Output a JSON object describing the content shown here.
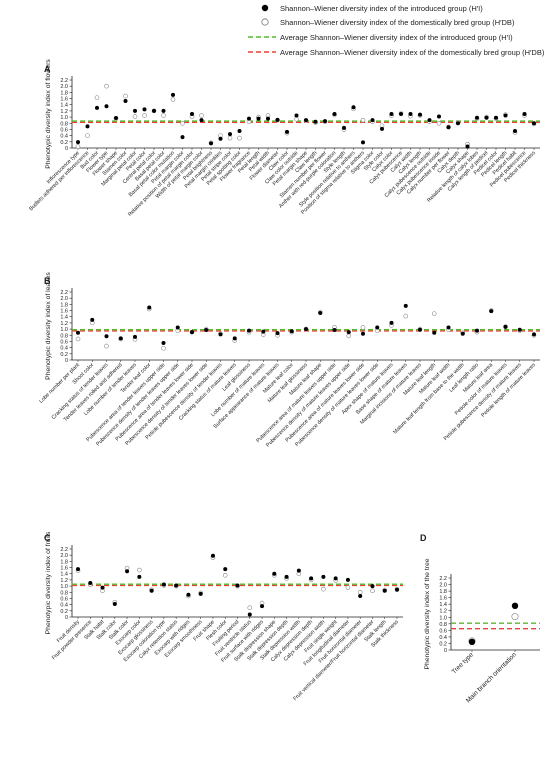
{
  "legend": [
    {
      "key": "introduced",
      "label": "Shannon–Wiener diversity index of the introduced group (H′I)",
      "marker": "filled"
    },
    {
      "key": "domestic",
      "label": "Shannon–Wiener diversity index of the domestically bred group (H′DB)",
      "marker": "open"
    },
    {
      "key": "avg_introduced",
      "label": "Average Shannon–Wiener diversity index of the introduced group (H′I)",
      "color": "#55b82e"
    },
    {
      "key": "avg_domestic",
      "label": "Average Shannon–Wiener diversity index of the domestically bred group (H′DB)",
      "color": "#e8413a"
    }
  ],
  "colors": {
    "introduced": "#000000",
    "domestic": "#888888",
    "avg_introduced": "#55b82e",
    "avg_domestic": "#e8413a"
  },
  "chart_data": [
    {
      "panel": "A",
      "type": "scatter",
      "ylabel": "Phenotypic diversity index of flowers",
      "ylim": [
        0,
        2.2
      ],
      "yticks": [
        "0",
        "0.2",
        "0.4",
        "0.6",
        "0.8",
        "1.0",
        "1.2",
        "1.4",
        "1.6",
        "1.8",
        "2.0",
        "2.2"
      ],
      "avg_introduced": 0.87,
      "avg_domestic": 0.83,
      "categories": [
        "Inflorescence type",
        "Budlets adhered per inflorescence",
        "Bud color",
        "Flower type",
        "Flower shape",
        "Stamen color",
        "Marginal petal color",
        "Petal color",
        "Central petal color",
        "Basal petal color",
        "Basal petal color mutation",
        "Petal margin color",
        "Relative position of petal margin color",
        "Width of petal margin color",
        "Petal brightness",
        "Petal margin crinkles",
        "Petal stripe color",
        "Petal spotting color",
        "Flower fragrance",
        "Petal length",
        "Petal width",
        "Flower diameter",
        "Claw color",
        "Claw color outside",
        "Petal margin shape",
        "Claw length",
        "Stamen number per flower",
        "Anther with red-purple coloration",
        "Style length",
        "Style position relative to anthers",
        "Position of stigma relative to anthers",
        "Stigma color",
        "Style color",
        "Calyx color",
        "Calyx pubescence",
        "Calyx width",
        "Calyx length",
        "Calyx pubescence outside",
        "Calyx pubescence inside",
        "Calyx number per flower",
        "Calyx depth",
        "Calyx shape",
        "Relative length of calyx lobes",
        "Calyx length of pedicel",
        "Pedicel color",
        "Pedicel length",
        "Pedicel habit",
        "Pedicel pubescence",
        "Pedicel thickness"
      ],
      "introduced": [
        0.19,
        0.7,
        1.3,
        1.35,
        0.97,
        1.52,
        1.2,
        1.25,
        1.2,
        1.2,
        1.72,
        0.35,
        1.1,
        0.9,
        0.15,
        0.3,
        0.45,
        0.55,
        0.95,
        0.95,
        0.95,
        0.91,
        0.52,
        1.05,
        0.9,
        0.85,
        0.87,
        1.1,
        0.65,
        1.32,
        0.18,
        0.9,
        0.62,
        1.1,
        1.1,
        1.1,
        1.08,
        0.9,
        1.02,
        0.67,
        0.8,
        0.05,
        0.98,
        0.98,
        0.98,
        1.05,
        0.55,
        1.1,
        0.8
      ],
      "domestic": [
        0.05,
        0.4,
        1.63,
        2.0,
        0.95,
        1.68,
        1.02,
        1.05,
        1.2,
        1.05,
        1.57,
        0.8,
        1.02,
        1.05,
        0.17,
        0.4,
        0.32,
        0.32,
        0.85,
        1.0,
        1.05,
        0.9,
        0.48,
        0.93,
        0.88,
        0.82,
        0.85,
        1.07,
        0.6,
        1.27,
        0.9,
        0.85,
        0.72,
        1.05,
        1.12,
        1.03,
        1.05,
        0.85,
        0.8,
        0.68,
        0.82,
        0.12,
        0.95,
        1.0,
        0.95,
        1.08,
        0.5,
        1.05,
        0.78
      ]
    },
    {
      "panel": "B",
      "type": "scatter",
      "ylabel": "Phenotypic diversity index of leaves",
      "ylim": [
        0,
        2.2
      ],
      "yticks": [
        "0",
        "0.2",
        "0.4",
        "0.6",
        "0.8",
        "1.0",
        "1.2",
        "1.4",
        "1.6",
        "1.8",
        "2.0",
        "2.2"
      ],
      "avg_introduced": 0.98,
      "avg_domestic": 0.94,
      "categories": [
        "Lobe number per plant",
        "Shoot color",
        "Cracking status of tender leaves",
        "Tender leaves rolled and adhered",
        "Lobe number of tender leaves",
        "Tender leaf color",
        "Pubescence area of tender leaves upper side",
        "Pubescence density of tender leaves upper side",
        "Pubescence area of tender leaves lower side",
        "Pubescence density of tender leaves lower side",
        "Petiole pubescence density of tender leaves",
        "Cracking status of mature leaves",
        "Leaf glossiness",
        "Lobe number of mature leaves",
        "Surface appearance of mature leaves",
        "Mature leaf color",
        "Mature leaf glossiness",
        "Mature leaf shape",
        "Pubescence area of mature leaves upper side",
        "Pubescence density of mature leaves upper side",
        "Pubescence area of mature leaves lower side",
        "Pubescence density of mature leaves lower side",
        "Apex shape of mature leaves",
        "Base shape of mature leaves",
        "Marginal incisions of mature leaves",
        "Mature leaf length",
        "Mature leaf width",
        "Mature leaf length from base to the width",
        "Leaf length ratio",
        "Mature leaf area",
        "Petiole color of mature leaves",
        "Petiole pubescence density of mature leaves",
        "Petiole length of mature leaves"
      ],
      "introduced": [
        0.88,
        1.3,
        0.77,
        0.7,
        0.75,
        1.7,
        0.55,
        1.05,
        0.9,
        0.97,
        0.83,
        0.7,
        0.95,
        0.92,
        0.87,
        0.93,
        1.0,
        1.52,
        0.97,
        0.9,
        0.85,
        1.05,
        1.2,
        1.75,
        0.98,
        0.88,
        1.05,
        0.85,
        0.95,
        1.58,
        1.07,
        0.98,
        0.83
      ],
      "domestic": [
        0.68,
        1.2,
        0.45,
        0.68,
        0.67,
        1.65,
        0.38,
        0.95,
        0.9,
        1.0,
        0.85,
        0.63,
        0.9,
        0.82,
        0.8,
        0.9,
        1.0,
        1.55,
        1.05,
        0.78,
        1.05,
        0.95,
        1.12,
        1.42,
        1.0,
        1.5,
        0.98,
        0.88,
        0.9,
        1.6,
        1.08,
        0.95,
        0.8
      ]
    },
    {
      "panel": "C",
      "type": "scatter",
      "ylabel": "Phenotypic diversity index of fruits",
      "ylim": [
        0,
        2.2
      ],
      "yticks": [
        "0",
        "0.2",
        "0.4",
        "0.6",
        "0.8",
        "1.0",
        "1.2",
        "1.4",
        "1.6",
        "1.8",
        "2.0",
        "2.2"
      ],
      "avg_introduced": 1.06,
      "avg_domestic": 1.02,
      "categories": [
        "Fruit density",
        "Fruit powder presence",
        "Stalk habit",
        "Stalk color",
        "Stalk color",
        "Exocarp color",
        "Exocarp glossiness",
        "Exocarp coloration type",
        "Calyx retention status",
        "Exocarp with ridges",
        "Exocarp smoothness",
        "Fruit shape",
        "Flesh color",
        "Fruiting period",
        "Fruit ventricle status",
        "Fruit surface with ridges",
        "Stalk depression shape",
        "Stalk depression depth",
        "Stalk depression width",
        "Calyx depression depth",
        "Calyx depression width",
        "Fruit single weight",
        "Fruit longitudinal diameter",
        "Fruit horizontal diameter",
        "Fruit vertical diameter/Fruit horizontal diameter",
        "Stalk length",
        "Stalk thickness"
      ],
      "introduced": [
        1.55,
        1.1,
        0.95,
        0.42,
        1.48,
        1.3,
        0.85,
        1.05,
        1.02,
        0.72,
        0.75,
        1.98,
        1.55,
        1.02,
        0.08,
        0.35,
        1.4,
        1.3,
        1.5,
        1.25,
        1.3,
        1.25,
        1.2,
        0.68,
        1.0,
        0.85,
        0.88
      ],
      "domestic": [
        1.5,
        1.05,
        0.85,
        0.48,
        1.58,
        1.52,
        0.88,
        1.02,
        1.0,
        0.68,
        0.78,
        1.92,
        1.35,
        1.0,
        0.3,
        0.45,
        1.35,
        1.25,
        1.4,
        1.2,
        0.9,
        1.18,
        0.95,
        0.8,
        0.85,
        0.87,
        0.9
      ]
    },
    {
      "panel": "D",
      "type": "scatter",
      "ylabel": "Phenotypic diversity index of the tree",
      "ylim": [
        0,
        2.2
      ],
      "yticks": [
        "0",
        "0.2",
        "0.4",
        "0.6",
        "0.8",
        "1.0",
        "1.2",
        "1.4",
        "1.6",
        "1.8",
        "2.0",
        "2.2"
      ],
      "avg_introduced": 0.82,
      "avg_domestic": 0.65,
      "categories": [
        "Tree type",
        "Main branch orientation"
      ],
      "introduced": [
        0.25,
        1.35
      ],
      "domestic": [
        0.28,
        1.02
      ]
    }
  ]
}
